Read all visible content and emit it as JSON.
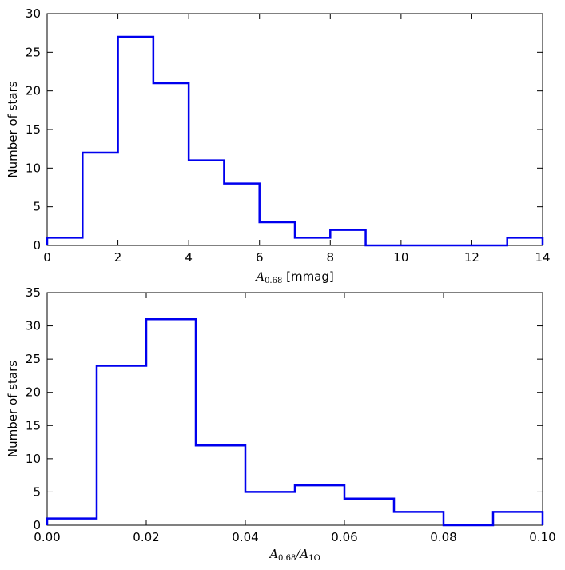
{
  "chart_data": [
    {
      "type": "histogram",
      "bin_edges": [
        0,
        1,
        2,
        3,
        4,
        5,
        6,
        7,
        8,
        9,
        10,
        11,
        12,
        13,
        14
      ],
      "values": [
        1,
        12,
        27,
        21,
        11,
        8,
        3,
        1,
        2,
        0,
        0,
        0,
        0,
        1
      ],
      "xlim": [
        0,
        14
      ],
      "ylim": [
        0,
        30
      ],
      "xticks": [
        "0",
        "2",
        "4",
        "6",
        "8",
        "10",
        "12",
        "14"
      ],
      "xtick_values": [
        0,
        2,
        4,
        6,
        8,
        10,
        12,
        14
      ],
      "yticks": [
        "0",
        "5",
        "10",
        "15",
        "20",
        "25",
        "30"
      ],
      "ytick_values": [
        0,
        5,
        10,
        15,
        20,
        25,
        30
      ],
      "xlabel": {
        "symbol": "A",
        "sub": "0.68",
        "unit": "[mmag]"
      },
      "ylabel": "Number of stars",
      "line_color": "#0000ee"
    },
    {
      "type": "histogram",
      "bin_edges": [
        0.0,
        0.01,
        0.02,
        0.03,
        0.04,
        0.05,
        0.06,
        0.07,
        0.08,
        0.09,
        0.1
      ],
      "values": [
        1,
        24,
        31,
        12,
        5,
        6,
        4,
        2,
        0,
        2
      ],
      "xlim": [
        0,
        0.1
      ],
      "ylim": [
        0,
        35
      ],
      "xticks": [
        "0.00",
        "0.02",
        "0.04",
        "0.06",
        "0.08",
        "0.10"
      ],
      "xtick_values": [
        0,
        0.02,
        0.04,
        0.06,
        0.08,
        0.1
      ],
      "yticks": [
        "0",
        "5",
        "10",
        "15",
        "20",
        "25",
        "30",
        "35"
      ],
      "ytick_values": [
        0,
        5,
        10,
        15,
        20,
        25,
        30,
        35
      ],
      "xlabel": {
        "symbol": "A",
        "sub": "0.68",
        "slash": "/",
        "symbol2": "A",
        "sub2": "1O"
      },
      "ylabel": "Number of stars",
      "line_color": "#0000ee"
    }
  ]
}
